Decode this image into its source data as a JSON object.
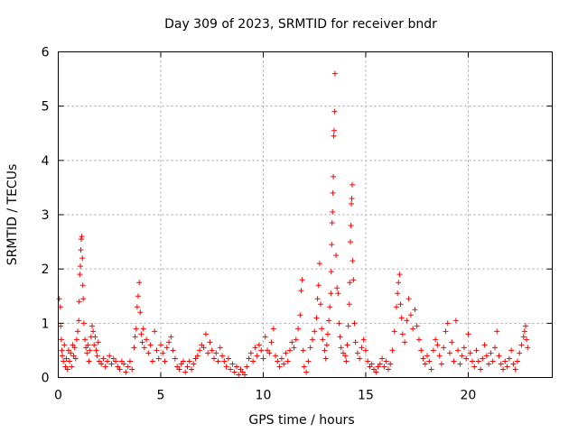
{
  "chart_data": {
    "type": "scatter",
    "title": "Day 309 of 2023, SRMTID for receiver bndr",
    "xlabel": "GPS time / hours",
    "ylabel": "SRMTID / TECUs",
    "xlim": [
      0,
      24.1
    ],
    "ylim": [
      0,
      6
    ],
    "x_ticks": [
      0,
      5,
      10,
      15,
      20
    ],
    "y_ticks": [
      0,
      1,
      2,
      3,
      4,
      5,
      6
    ],
    "grid": true,
    "marker": "+",
    "color": "#ff0000",
    "series": [
      {
        "name": "bndr",
        "points": [
          [
            0.05,
            1.45
          ],
          [
            0.1,
            1.3
          ],
          [
            0.12,
            0.95
          ],
          [
            0.15,
            0.7
          ],
          [
            0.18,
            0.5
          ],
          [
            0.2,
            0.4
          ],
          [
            0.25,
            0.3
          ],
          [
            0.3,
            0.6
          ],
          [
            0.35,
            0.2
          ],
          [
            0.4,
            0.35
          ],
          [
            0.45,
            0.15
          ],
          [
            0.5,
            0.5
          ],
          [
            0.55,
            0.3
          ],
          [
            0.6,
            0.45
          ],
          [
            0.65,
            0.2
          ],
          [
            0.7,
            0.6
          ],
          [
            0.75,
            0.4
          ],
          [
            0.8,
            0.55
          ],
          [
            0.85,
            0.35
          ],
          [
            0.9,
            0.7
          ],
          [
            0.95,
            0.85
          ],
          [
            1.0,
            1.05
          ],
          [
            1.02,
            1.4
          ],
          [
            1.05,
            1.9
          ],
          [
            1.08,
            2.05
          ],
          [
            1.1,
            2.35
          ],
          [
            1.12,
            2.55
          ],
          [
            1.15,
            2.6
          ],
          [
            1.18,
            2.2
          ],
          [
            1.2,
            1.7
          ],
          [
            1.22,
            1.45
          ],
          [
            1.25,
            1.0
          ],
          [
            1.3,
            0.7
          ],
          [
            1.35,
            0.55
          ],
          [
            1.4,
            0.45
          ],
          [
            1.45,
            0.6
          ],
          [
            1.5,
            0.3
          ],
          [
            1.55,
            0.5
          ],
          [
            1.6,
            0.75
          ],
          [
            1.65,
            0.95
          ],
          [
            1.7,
            0.85
          ],
          [
            1.75,
            0.6
          ],
          [
            1.8,
            0.75
          ],
          [
            1.85,
            0.5
          ],
          [
            1.9,
            0.4
          ],
          [
            1.95,
            0.65
          ],
          [
            2.0,
            0.3
          ],
          [
            2.1,
            0.25
          ],
          [
            2.2,
            0.35
          ],
          [
            2.3,
            0.2
          ],
          [
            2.4,
            0.3
          ],
          [
            2.5,
            0.4
          ],
          [
            2.6,
            0.25
          ],
          [
            2.7,
            0.35
          ],
          [
            2.8,
            0.3
          ],
          [
            2.9,
            0.2
          ],
          [
            3.0,
            0.15
          ],
          [
            3.1,
            0.3
          ],
          [
            3.2,
            0.25
          ],
          [
            3.3,
            0.1
          ],
          [
            3.4,
            0.2
          ],
          [
            3.5,
            0.3
          ],
          [
            3.6,
            0.15
          ],
          [
            3.7,
            0.55
          ],
          [
            3.75,
            0.75
          ],
          [
            3.8,
            0.9
          ],
          [
            3.85,
            1.3
          ],
          [
            3.9,
            1.5
          ],
          [
            3.95,
            1.75
          ],
          [
            4.0,
            1.2
          ],
          [
            4.05,
            0.8
          ],
          [
            4.1,
            0.65
          ],
          [
            4.15,
            0.9
          ],
          [
            4.2,
            0.55
          ],
          [
            4.3,
            0.7
          ],
          [
            4.4,
            0.45
          ],
          [
            4.5,
            0.6
          ],
          [
            4.6,
            0.3
          ],
          [
            4.7,
            0.85
          ],
          [
            4.8,
            0.5
          ],
          [
            4.9,
            0.35
          ],
          [
            5.0,
            0.6
          ],
          [
            5.1,
            0.45
          ],
          [
            5.2,
            0.3
          ],
          [
            5.3,
            0.55
          ],
          [
            5.4,
            0.65
          ],
          [
            5.5,
            0.75
          ],
          [
            5.6,
            0.5
          ],
          [
            5.7,
            0.35
          ],
          [
            5.8,
            0.2
          ],
          [
            5.9,
            0.15
          ],
          [
            6.0,
            0.25
          ],
          [
            6.1,
            0.3
          ],
          [
            6.2,
            0.1
          ],
          [
            6.3,
            0.2
          ],
          [
            6.4,
            0.3
          ],
          [
            6.5,
            0.15
          ],
          [
            6.6,
            0.25
          ],
          [
            6.7,
            0.35
          ],
          [
            6.8,
            0.4
          ],
          [
            6.9,
            0.5
          ],
          [
            7.0,
            0.6
          ],
          [
            7.1,
            0.55
          ],
          [
            7.2,
            0.8
          ],
          [
            7.3,
            0.45
          ],
          [
            7.4,
            0.65
          ],
          [
            7.5,
            0.5
          ],
          [
            7.6,
            0.35
          ],
          [
            7.7,
            0.45
          ],
          [
            7.8,
            0.3
          ],
          [
            7.9,
            0.55
          ],
          [
            8.0,
            0.4
          ],
          [
            8.1,
            0.3
          ],
          [
            8.2,
            0.2
          ],
          [
            8.3,
            0.35
          ],
          [
            8.4,
            0.15
          ],
          [
            8.5,
            0.25
          ],
          [
            8.6,
            0.1
          ],
          [
            8.7,
            0.2
          ],
          [
            8.8,
            0.05
          ],
          [
            8.9,
            0.15
          ],
          [
            9.0,
            0.1
          ],
          [
            9.1,
            0.05
          ],
          [
            9.2,
            0.2
          ],
          [
            9.3,
            0.35
          ],
          [
            9.4,
            0.45
          ],
          [
            9.5,
            0.3
          ],
          [
            9.6,
            0.55
          ],
          [
            9.7,
            0.4
          ],
          [
            9.8,
            0.6
          ],
          [
            9.9,
            0.5
          ],
          [
            10.0,
            0.35
          ],
          [
            10.1,
            0.75
          ],
          [
            10.2,
            0.5
          ],
          [
            10.3,
            0.45
          ],
          [
            10.4,
            0.65
          ],
          [
            10.5,
            0.9
          ],
          [
            10.6,
            0.4
          ],
          [
            10.7,
            0.3
          ],
          [
            10.8,
            0.2
          ],
          [
            10.9,
            0.35
          ],
          [
            11.0,
            0.25
          ],
          [
            11.1,
            0.45
          ],
          [
            11.2,
            0.3
          ],
          [
            11.3,
            0.5
          ],
          [
            11.4,
            0.65
          ],
          [
            11.5,
            0.55
          ],
          [
            11.6,
            0.7
          ],
          [
            11.7,
            0.9
          ],
          [
            11.8,
            1.15
          ],
          [
            11.85,
            1.6
          ],
          [
            11.9,
            1.8
          ],
          [
            11.95,
            0.5
          ],
          [
            12.0,
            0.2
          ],
          [
            12.1,
            0.1
          ],
          [
            12.2,
            0.3
          ],
          [
            12.3,
            0.55
          ],
          [
            12.4,
            0.7
          ],
          [
            12.5,
            0.85
          ],
          [
            12.6,
            1.1
          ],
          [
            12.65,
            1.45
          ],
          [
            12.7,
            1.7
          ],
          [
            12.75,
            2.1
          ],
          [
            12.8,
            1.35
          ],
          [
            12.85,
            0.9
          ],
          [
            12.9,
            0.7
          ],
          [
            13.0,
            0.5
          ],
          [
            13.05,
            0.35
          ],
          [
            13.1,
            0.6
          ],
          [
            13.15,
            0.8
          ],
          [
            13.2,
            1.05
          ],
          [
            13.25,
            1.3
          ],
          [
            13.3,
            1.55
          ],
          [
            13.32,
            1.95
          ],
          [
            13.34,
            2.45
          ],
          [
            13.36,
            2.85
          ],
          [
            13.38,
            3.05
          ],
          [
            13.4,
            3.4
          ],
          [
            13.42,
            3.7
          ],
          [
            13.44,
            4.45
          ],
          [
            13.46,
            4.55
          ],
          [
            13.48,
            4.9
          ],
          [
            13.5,
            5.6
          ],
          [
            13.55,
            2.25
          ],
          [
            13.6,
            1.65
          ],
          [
            13.65,
            1.55
          ],
          [
            13.7,
            1.0
          ],
          [
            13.75,
            0.75
          ],
          [
            13.8,
            0.55
          ],
          [
            13.9,
            0.45
          ],
          [
            14.0,
            0.4
          ],
          [
            14.05,
            0.3
          ],
          [
            14.1,
            0.6
          ],
          [
            14.15,
            0.95
          ],
          [
            14.2,
            1.35
          ],
          [
            14.22,
            1.75
          ],
          [
            14.25,
            2.5
          ],
          [
            14.28,
            2.8
          ],
          [
            14.3,
            3.2
          ],
          [
            14.32,
            3.3
          ],
          [
            14.34,
            3.55
          ],
          [
            14.36,
            2.15
          ],
          [
            14.4,
            1.8
          ],
          [
            14.45,
            1.0
          ],
          [
            14.5,
            0.65
          ],
          [
            14.6,
            0.45
          ],
          [
            14.7,
            0.35
          ],
          [
            14.8,
            0.55
          ],
          [
            14.9,
            0.7
          ],
          [
            15.0,
            0.5
          ],
          [
            15.1,
            0.3
          ],
          [
            15.2,
            0.2
          ],
          [
            15.3,
            0.25
          ],
          [
            15.4,
            0.15
          ],
          [
            15.5,
            0.1
          ],
          [
            15.6,
            0.2
          ],
          [
            15.7,
            0.25
          ],
          [
            15.8,
            0.35
          ],
          [
            15.9,
            0.2
          ],
          [
            16.0,
            0.3
          ],
          [
            16.1,
            0.15
          ],
          [
            16.2,
            0.25
          ],
          [
            16.3,
            0.5
          ],
          [
            16.4,
            0.85
          ],
          [
            16.5,
            1.3
          ],
          [
            16.55,
            1.55
          ],
          [
            16.6,
            1.75
          ],
          [
            16.65,
            1.9
          ],
          [
            16.7,
            1.35
          ],
          [
            16.75,
            1.1
          ],
          [
            16.8,
            0.8
          ],
          [
            16.9,
            0.65
          ],
          [
            17.0,
            1.05
          ],
          [
            17.1,
            1.45
          ],
          [
            17.2,
            1.15
          ],
          [
            17.3,
            0.9
          ],
          [
            17.4,
            1.25
          ],
          [
            17.5,
            0.95
          ],
          [
            17.6,
            0.7
          ],
          [
            17.7,
            0.5
          ],
          [
            17.8,
            0.35
          ],
          [
            17.9,
            0.25
          ],
          [
            18.0,
            0.4
          ],
          [
            18.1,
            0.3
          ],
          [
            18.2,
            0.15
          ],
          [
            18.3,
            0.5
          ],
          [
            18.4,
            0.7
          ],
          [
            18.5,
            0.6
          ],
          [
            18.6,
            0.4
          ],
          [
            18.7,
            0.25
          ],
          [
            18.8,
            0.55
          ],
          [
            18.9,
            0.85
          ],
          [
            19.0,
            1.0
          ],
          [
            19.1,
            0.45
          ],
          [
            19.2,
            0.65
          ],
          [
            19.3,
            0.3
          ],
          [
            19.4,
            1.05
          ],
          [
            19.5,
            0.5
          ],
          [
            19.6,
            0.25
          ],
          [
            19.7,
            0.4
          ],
          [
            19.8,
            0.55
          ],
          [
            19.9,
            0.35
          ],
          [
            20.0,
            0.8
          ],
          [
            20.1,
            0.45
          ],
          [
            20.2,
            0.3
          ],
          [
            20.3,
            0.2
          ],
          [
            20.4,
            0.5
          ],
          [
            20.5,
            0.3
          ],
          [
            20.6,
            0.15
          ],
          [
            20.7,
            0.35
          ],
          [
            20.8,
            0.6
          ],
          [
            20.9,
            0.4
          ],
          [
            21.0,
            0.25
          ],
          [
            21.1,
            0.45
          ],
          [
            21.2,
            0.3
          ],
          [
            21.3,
            0.55
          ],
          [
            21.4,
            0.85
          ],
          [
            21.5,
            0.4
          ],
          [
            21.6,
            0.25
          ],
          [
            21.7,
            0.15
          ],
          [
            21.8,
            0.3
          ],
          [
            21.9,
            0.2
          ],
          [
            22.0,
            0.35
          ],
          [
            22.1,
            0.5
          ],
          [
            22.2,
            0.25
          ],
          [
            22.3,
            0.15
          ],
          [
            22.4,
            0.3
          ],
          [
            22.5,
            0.45
          ],
          [
            22.6,
            0.6
          ],
          [
            22.7,
            0.75
          ],
          [
            22.75,
            0.85
          ],
          [
            22.8,
            0.95
          ],
          [
            22.85,
            0.7
          ],
          [
            22.9,
            0.55
          ]
        ]
      }
    ]
  }
}
